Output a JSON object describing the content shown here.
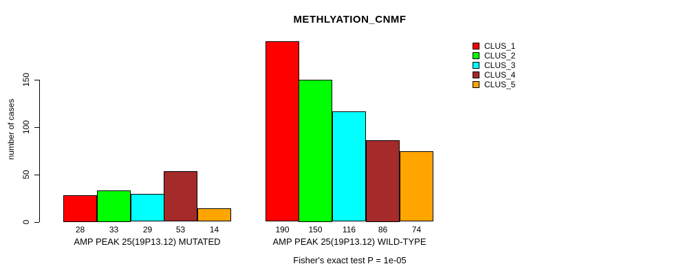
{
  "chart_data": {
    "type": "bar",
    "title": "METHLYATION_CNMF",
    "ylabel": "number of cases",
    "xlabel": "",
    "yticks": [
      0,
      50,
      100,
      150
    ],
    "ylim": [
      0,
      190
    ],
    "grid": false,
    "legend_position": "top-right",
    "categories": [
      "AMP PEAK 25(19P13.12) MUTATED",
      "AMP PEAK 25(19P13.12) WILD-TYPE"
    ],
    "series": [
      {
        "name": "CLUS_1",
        "color": "#FF0000",
        "values": [
          28,
          190
        ]
      },
      {
        "name": "CLUS_2",
        "color": "#00FF00",
        "values": [
          33,
          150
        ]
      },
      {
        "name": "CLUS_3",
        "color": "#00FFFF",
        "values": [
          29,
          116
        ]
      },
      {
        "name": "CLUS_4",
        "color": "#A52A2A",
        "values": [
          53,
          86
        ]
      },
      {
        "name": "CLUS_5",
        "color": "#FFA500",
        "values": [
          14,
          74
        ]
      }
    ],
    "groups": [
      {
        "label": "AMP PEAK 25(19P13.12) MUTATED",
        "values": [
          28,
          33,
          29,
          53,
          14
        ],
        "value_labels": [
          "28",
          "33",
          "29",
          "53",
          "14"
        ]
      },
      {
        "label": "AMP PEAK 25(19P13.12) WILD-TYPE",
        "values": [
          190,
          150,
          116,
          86,
          74
        ],
        "value_labels": [
          "190",
          "150",
          "116",
          "86",
          "74"
        ]
      }
    ],
    "note": "Fisher's exact test P = 1e-05"
  }
}
